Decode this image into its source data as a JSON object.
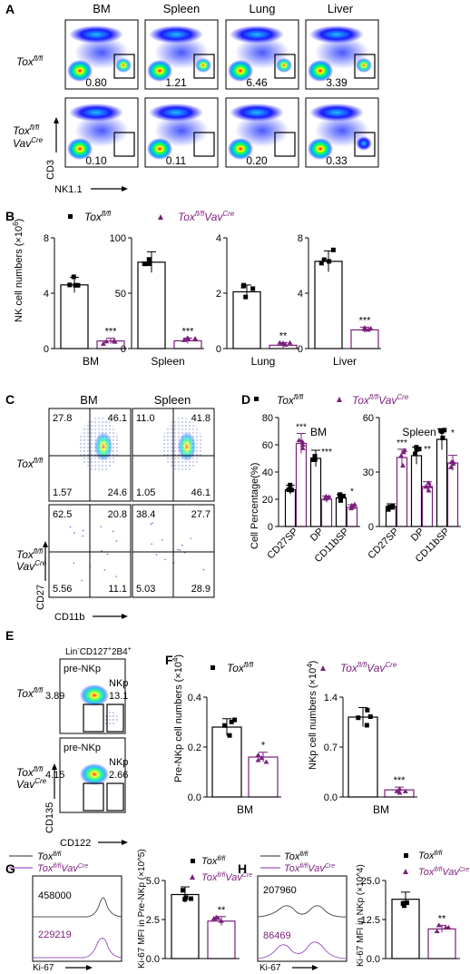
{
  "colors": {
    "wt": "#000000",
    "ko": "#7b1f7b",
    "flow_low": "#0000ff",
    "flow_mid": "#00ffff",
    "flow_high": "#ffff00",
    "flow_peak": "#ff0000"
  },
  "panel_letters": [
    "A",
    "B",
    "C",
    "D",
    "E",
    "F",
    "G",
    "H"
  ],
  "genotype": {
    "wt_main": "Tox",
    "wt_sup": "fl/fl",
    "ko_main": "Tox",
    "ko_sup": "fl/fl",
    "ko_main2": "Vav",
    "ko_sup2": "Cre"
  },
  "panelA": {
    "columns": [
      "BM",
      "Spleen",
      "Lung",
      "Liver"
    ],
    "row_wt": [
      "0.80",
      "1.21",
      "6.46",
      "3.39"
    ],
    "row_ko": [
      "0.10",
      "0.11",
      "0.20",
      "0.33"
    ],
    "y_axis": "CD3",
    "x_axis": "NK1.1"
  },
  "panelC": {
    "columns": [
      "BM",
      "Spleen"
    ],
    "wt_quads": [
      [
        "27.8",
        "46.1",
        "1.57",
        "24.6"
      ],
      [
        "11.0",
        "41.8",
        "1.05",
        "46.1"
      ]
    ],
    "ko_quads": [
      [
        "62.5",
        "20.8",
        "5.56",
        "11.1"
      ],
      [
        "38.4",
        "27.7",
        "5.03",
        "28.9"
      ]
    ],
    "y_axis": "CD27",
    "x_axis": "CD11b"
  },
  "panelE": {
    "header": "Lin",
    "header_sup1": "-",
    "header_mid": "CD127",
    "header_sup2": "+",
    "header_end": "2B4",
    "header_sup3": "+",
    "gate1": "pre-NKp",
    "gate2": "NKp",
    "wt_values": [
      "3.89",
      "13.1"
    ],
    "ko_values": [
      "4.15",
      "2.66"
    ],
    "y_axis": "CD135",
    "x_axis": "CD122"
  },
  "panelG": {
    "wt_mfi": "458000",
    "ko_mfi": "229219",
    "x_axis": "Ki-67"
  },
  "panelH": {
    "wt_mfi": "207960",
    "ko_mfi": "86469",
    "x_axis": "Ki-67"
  },
  "chart_data": [
    {
      "type": "bar",
      "panel": "B",
      "ylabel": "NK cell numbers (×10",
      "ylabel_sup": "6",
      "ylabel_end": ")",
      "plots": [
        {
          "category": "BM",
          "ylim": [
            0,
            8
          ],
          "ticks": [
            "0",
            "4",
            "8"
          ],
          "wt": 4.6,
          "ko": 0.55,
          "sig": "***"
        },
        {
          "category": "Spleen",
          "ylim": [
            0,
            100
          ],
          "ticks": [
            "0",
            "50",
            "100"
          ],
          "wt": 78,
          "ko": 7,
          "sig": "***"
        },
        {
          "category": "Lung",
          "ylim": [
            0,
            4
          ],
          "ticks": [
            "0",
            "2",
            "4"
          ],
          "wt": 2.05,
          "ko": 0.12,
          "sig": "**"
        },
        {
          "category": "Liver",
          "ylim": [
            0,
            8
          ],
          "ticks": [
            "0",
            "4",
            "8"
          ],
          "wt": 6.3,
          "ko": 1.35,
          "sig": "***"
        }
      ]
    },
    {
      "type": "bar",
      "panel": "D",
      "ylabel": "Cell Percentage(%)",
      "categories": [
        "CD27SP",
        "DP",
        "CD11bSP"
      ],
      "plots": [
        {
          "title": "BM",
          "ylim": [
            0,
            80
          ],
          "ticks": [
            "0",
            "20",
            "40",
            "60",
            "80"
          ],
          "wt": [
            27,
            50,
            21
          ],
          "ko": [
            61,
            20,
            14
          ],
          "sig": [
            "***",
            "***",
            "*"
          ]
        },
        {
          "title": "Spleen",
          "ylim": [
            0,
            60
          ],
          "ticks": [
            "0",
            "30",
            "60"
          ],
          "wt": [
            11,
            39,
            48
          ],
          "ko": [
            38,
            22,
            35
          ],
          "sig": [
            "***",
            "**",
            "*"
          ]
        }
      ]
    },
    {
      "type": "bar",
      "panel": "F",
      "plots": [
        {
          "ylabel": "Pre-NKp cell numbers (×10",
          "ylabel_sup": "4",
          "ylabel_end": ")",
          "category": "BM",
          "ylim": [
            0,
            0.4
          ],
          "ticks": [
            "0.0",
            "0.2",
            "0.4"
          ],
          "wt": 0.28,
          "ko": 0.16,
          "sig": "*"
        },
        {
          "ylabel": "NKp cell numbers (×10",
          "ylabel_sup": "4",
          "ylabel_end": ")",
          "category": "BM",
          "ylim": [
            0,
            1.4
          ],
          "ticks": [
            "0.0",
            "0.7",
            "1.4"
          ],
          "wt": 1.12,
          "ko": 0.1,
          "sig": "***"
        }
      ]
    },
    {
      "type": "bar",
      "panel": "G",
      "ylabel": "Ki-67 MFI in Pre-NKp (×10^5)",
      "ylim": [
        0,
        5
      ],
      "ticks": [
        "0.0",
        "2.5",
        "5.0"
      ],
      "wt": 4.1,
      "ko": 2.4,
      "sig": "**"
    },
    {
      "type": "bar",
      "panel": "H",
      "ylabel": "Ki-67 MFI in NKp (×10^4)",
      "ylim": [
        0,
        25
      ],
      "ticks": [
        "0.0",
        "12.5",
        "25.0"
      ],
      "wt": 19,
      "ko": 9.5,
      "sig": "**"
    }
  ]
}
